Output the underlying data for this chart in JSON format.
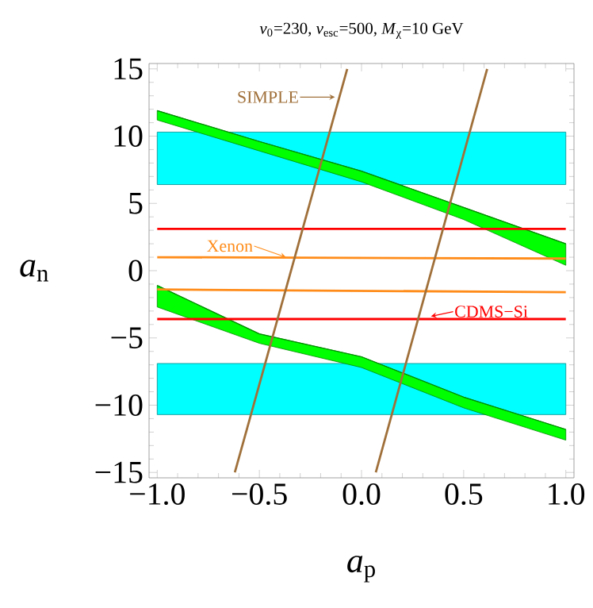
{
  "chart_data": {
    "type": "line",
    "title": "*v*$_{0}$=230, *v*$_{esc}$=500, *M*$_{χ}$=10 GeV",
    "xlabel": "*a*$_{p}$",
    "ylabel": "*a*$_{n}$",
    "xlim": [
      -1.04,
      1.04
    ],
    "ylim": [
      -15.4,
      15.4
    ],
    "xticks": [
      {
        "value": -1,
        "label": "−1.0"
      },
      {
        "value": -0.5,
        "label": "−0.5"
      },
      {
        "value": 0,
        "label": "0.0"
      },
      {
        "value": 0.5,
        "label": "0.5"
      },
      {
        "value": 1,
        "label": "1.0"
      }
    ],
    "yticks": [
      {
        "value": -15,
        "label": "−15"
      },
      {
        "value": -10,
        "label": "−10"
      },
      {
        "value": -5,
        "label": "−5"
      },
      0,
      5,
      10,
      15
    ],
    "bands": [
      {
        "axis": "y",
        "from": 6.4,
        "to": 10.3,
        "color": "#00ffff"
      },
      {
        "axis": "y",
        "from": -10.7,
        "to": -6.9,
        "color": "#00ffff"
      }
    ],
    "series": [
      {
        "color": "#008c00",
        "x": [
          -1,
          -0.5,
          0,
          0.5,
          1
        ],
        "values": [
          11.9,
          9.6,
          7.4,
          4.7,
          2.0
        ],
        "lower": [
          11.2,
          8.9,
          6.6,
          3.8,
          0.4
        ],
        "upper": [
          11.9,
          9.6,
          7.4,
          4.7,
          2.0
        ]
      },
      {
        "color": "#008c00",
        "x": [
          -1,
          -0.5,
          0,
          0.5,
          1
        ],
        "values": [
          -1.1,
          -4.7,
          -6.4,
          -9.4,
          -11.8
        ],
        "lower": [
          -2.7,
          -5.4,
          -7.2,
          -10.2,
          -12.6
        ],
        "upper": [
          -1.1,
          -4.7,
          -6.4,
          -9.4,
          -11.8
        ]
      },
      {
        "color": "#ff0000",
        "x": [
          -1,
          1
        ],
        "values": [
          3.1,
          3.1
        ]
      },
      {
        "color": "#ff0000",
        "x": [
          -1,
          1
        ],
        "values": [
          -3.6,
          -3.6
        ]
      },
      {
        "color": "#ff8c1a",
        "x": [
          -1,
          1
        ],
        "values": [
          1.0,
          0.9
        ]
      },
      {
        "color": "#ff8c1a",
        "x": [
          -1,
          1
        ],
        "values": [
          -1.4,
          -1.6
        ]
      },
      {
        "color": "#a0703a",
        "x": [
          -0.62,
          -0.07
        ],
        "values": [
          -15,
          15
        ]
      },
      {
        "color": "#a0703a",
        "x": [
          0.07,
          0.615
        ],
        "values": [
          -15,
          15
        ]
      }
    ],
    "annotations": [
      {
        "text": "SIMPLE",
        "x": -0.13,
        "y": 12.9
      },
      {
        "text": "Xenon",
        "x": -0.37,
        "y": 1.0
      },
      {
        "text": "CDMS−Si",
        "x": 0.34,
        "y": -3.4
      }
    ]
  }
}
